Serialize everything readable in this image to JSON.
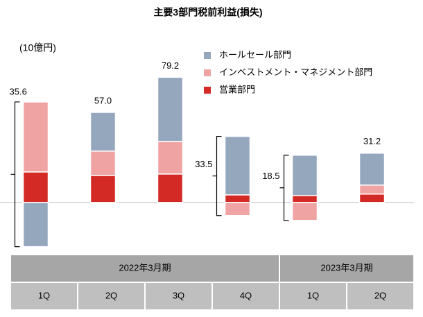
{
  "chart_data": {
    "type": "stacked_bar",
    "title": "主要3部門税前利益(損失)",
    "unit_label": "(10億円)",
    "categories": [
      "1Q",
      "2Q",
      "3Q",
      "4Q",
      "1Q",
      "2Q"
    ],
    "groups": [
      {
        "label": "2022年3月期",
        "count": 4
      },
      {
        "label": "2023年3月期",
        "count": 2
      }
    ],
    "series": [
      {
        "name": "ホールセール部門",
        "color": "#95a7bd",
        "values": [
          -28.0,
          24.5,
          40.6,
          37.0,
          25.5,
          20.2
        ]
      },
      {
        "name": "インベストメント・マネジメント部門",
        "color": "#f0a3a3",
        "values": [
          44.3,
          15.4,
          20.6,
          -8.3,
          -11.4,
          5.7
        ]
      },
      {
        "name": "営業部門",
        "color": "#d42a26",
        "values": [
          19.3,
          17.1,
          18.0,
          4.8,
          4.4,
          5.3
        ]
      }
    ],
    "totals": [
      35.6,
      57.0,
      79.2,
      33.5,
      18.5,
      31.2
    ],
    "total_labels": [
      "35.6",
      "57.0",
      "79.2",
      "33.5",
      "18.5",
      "31.2"
    ],
    "ylim": [
      -40,
      100
    ],
    "legend": "top-right"
  }
}
